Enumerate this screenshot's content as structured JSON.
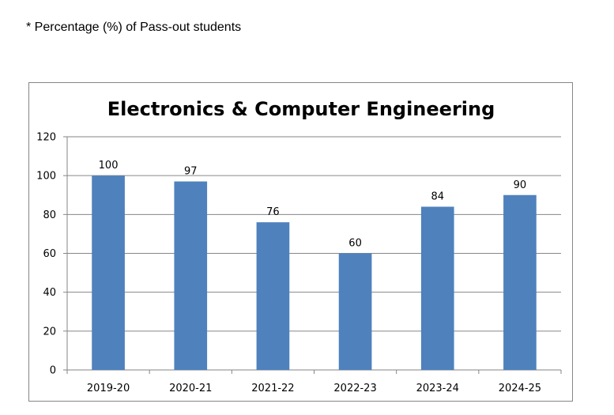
{
  "caption": "* Percentage  (%) of Pass-out  students",
  "chart_data": {
    "type": "bar",
    "title": "Electronics & Computer Engineering",
    "xlabel": "",
    "ylabel": "",
    "categories": [
      "2019-20",
      "2020-21",
      "2021-22",
      "2022-23",
      "2023-24",
      "2024-25"
    ],
    "values": [
      100,
      97,
      76,
      60,
      84,
      90
    ],
    "ylim": [
      0,
      120
    ],
    "yticks": [
      0,
      20,
      40,
      60,
      80,
      100,
      120
    ],
    "grid": true,
    "legend": "none",
    "bar_color": "#4F81BD",
    "data_labels": true
  }
}
